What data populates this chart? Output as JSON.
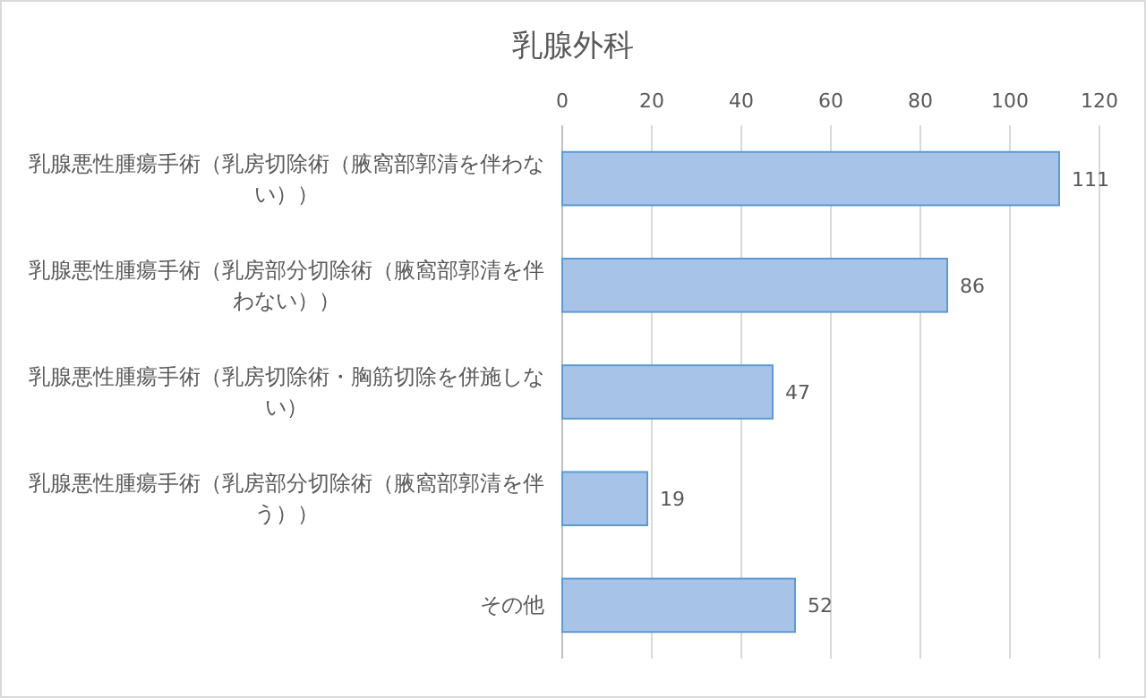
{
  "chart_data": {
    "type": "bar",
    "orientation": "horizontal",
    "title": "乳腺外科",
    "categories": [
      "乳腺悪性腫瘍手術（乳房切除術（腋窩部郭清を伴わない））",
      "乳腺悪性腫瘍手術（乳房部分切除術（腋窩部郭清を伴わない））",
      "乳腺悪性腫瘍手術（乳房切除術・胸筋切除を併施しない）",
      "乳腺悪性腫瘍手術（乳房部分切除術（腋窩部郭清を伴う））",
      "その他"
    ],
    "values": [
      111,
      86,
      47,
      19,
      52
    ],
    "color": "#a7c4e8",
    "xlim": [
      0,
      120
    ],
    "xticks": [
      0,
      20,
      40,
      60,
      80,
      100,
      120
    ],
    "grid": "x",
    "data_labels": true
  }
}
